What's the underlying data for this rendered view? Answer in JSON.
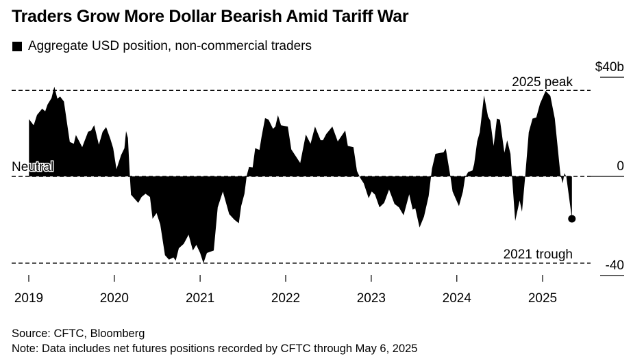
{
  "chart_data": {
    "type": "area",
    "title": "Traders Grow More Dollar Bearish Amid Tariff War",
    "legend": [
      {
        "name": "Aggregate USD position, non-commercial traders",
        "color": "#000000"
      }
    ],
    "legend_placement": "top-left",
    "y_unit_label": "$40b",
    "y_ticks": [
      {
        "value": 40,
        "label": "$40b"
      },
      {
        "value": 0,
        "label": "0"
      },
      {
        "value": -40,
        "label": "-40"
      }
    ],
    "ylim": [
      -40,
      40
    ],
    "y_axis_side": "right",
    "x_ticks": [
      "2019",
      "2020",
      "2021",
      "2022",
      "2023",
      "2024",
      "2025"
    ],
    "xlim": [
      "2019-01-01",
      "2025-05-06"
    ],
    "grid": false,
    "reference_lines": [
      {
        "label": "2025 peak",
        "value": 34.7,
        "style": "dashed"
      },
      {
        "label": "Neutral",
        "value": 0,
        "style": "dashed"
      },
      {
        "label": "2021 trough",
        "value": -35,
        "style": "dashed"
      }
    ],
    "end_marker": {
      "date": "2025-05-06",
      "value": -17.1
    },
    "series": [
      {
        "color": "#000000",
        "points": [
          [
            "2019-01-02",
            23.1
          ],
          [
            "2019-01-22",
            20.6
          ],
          [
            "2019-02-05",
            24.8
          ],
          [
            "2019-02-27",
            27.3
          ],
          [
            "2019-03-12",
            26.3
          ],
          [
            "2019-03-22",
            29.0
          ],
          [
            "2019-04-08",
            31.6
          ],
          [
            "2019-04-20",
            36.2
          ],
          [
            "2019-05-03",
            31.4
          ],
          [
            "2019-05-15",
            32.2
          ],
          [
            "2019-05-31",
            30.2
          ],
          [
            "2019-06-14",
            21.0
          ],
          [
            "2019-06-25",
            13.9
          ],
          [
            "2019-07-12",
            13.2
          ],
          [
            "2019-07-21",
            16.7
          ],
          [
            "2019-08-05",
            14.0
          ],
          [
            "2019-08-17",
            11.8
          ],
          [
            "2019-08-27",
            14.3
          ],
          [
            "2019-09-11",
            18.0
          ],
          [
            "2019-09-24",
            18.5
          ],
          [
            "2019-10-07",
            20.7
          ],
          [
            "2019-10-27",
            12.8
          ],
          [
            "2019-11-12",
            18.0
          ],
          [
            "2019-11-27",
            19.9
          ],
          [
            "2019-12-15",
            15.1
          ],
          [
            "2019-12-27",
            11.4
          ],
          [
            "2020-01-10",
            2.9
          ],
          [
            "2020-01-30",
            8.6
          ],
          [
            "2020-02-13",
            11.4
          ],
          [
            "2020-02-20",
            18.3
          ],
          [
            "2020-02-28",
            15.5
          ],
          [
            "2020-03-07",
            0.4
          ],
          [
            "2020-03-12",
            -7.4
          ],
          [
            "2020-04-12",
            -10.7
          ],
          [
            "2020-04-26",
            -8.3
          ],
          [
            "2020-05-13",
            -7.0
          ],
          [
            "2020-06-01",
            -8.3
          ],
          [
            "2020-06-12",
            -17.1
          ],
          [
            "2020-06-29",
            -14.8
          ],
          [
            "2020-07-15",
            -19.4
          ],
          [
            "2020-08-04",
            -31.8
          ],
          [
            "2020-08-21",
            -33.6
          ],
          [
            "2020-09-09",
            -32.7
          ],
          [
            "2020-09-19",
            -34.0
          ],
          [
            "2020-10-02",
            -29.0
          ],
          [
            "2020-10-23",
            -27.2
          ],
          [
            "2020-11-13",
            -23.5
          ],
          [
            "2020-12-01",
            -29.9
          ],
          [
            "2020-12-16",
            -27.6
          ],
          [
            "2021-01-01",
            -30.9
          ],
          [
            "2021-01-15",
            -35.0
          ],
          [
            "2021-01-30",
            -30.9
          ],
          [
            "2021-02-28",
            -29.9
          ],
          [
            "2021-03-17",
            -12.5
          ],
          [
            "2021-04-08",
            -6.1
          ],
          [
            "2021-05-05",
            -15.2
          ],
          [
            "2021-05-27",
            -17.5
          ],
          [
            "2021-06-15",
            -18.9
          ],
          [
            "2021-06-25",
            -12.0
          ],
          [
            "2021-07-09",
            -7.0
          ],
          [
            "2021-07-19",
            0.4
          ],
          [
            "2021-07-29",
            3.9
          ],
          [
            "2021-08-13",
            3.6
          ],
          [
            "2021-08-24",
            11.4
          ],
          [
            "2021-09-11",
            10.7
          ],
          [
            "2021-09-20",
            16.0
          ],
          [
            "2021-10-05",
            23.5
          ],
          [
            "2021-10-20",
            22.9
          ],
          [
            "2021-11-08",
            19.2
          ],
          [
            "2021-11-18",
            20.1
          ],
          [
            "2021-11-29",
            24.7
          ],
          [
            "2021-12-12",
            20.6
          ],
          [
            "2022-01-10",
            20.1
          ],
          [
            "2022-01-25",
            10.9
          ],
          [
            "2022-03-04",
            5.4
          ],
          [
            "2022-03-28",
            16.9
          ],
          [
            "2022-04-17",
            13.2
          ],
          [
            "2022-05-06",
            20.1
          ],
          [
            "2022-05-30",
            14.6
          ],
          [
            "2022-06-09",
            14.6
          ],
          [
            "2022-06-23",
            17.1
          ],
          [
            "2022-07-19",
            20.1
          ],
          [
            "2022-08-11",
            14.1
          ],
          [
            "2022-09-12",
            18.5
          ],
          [
            "2022-09-23",
            12.3
          ],
          [
            "2022-10-17",
            11.8
          ],
          [
            "2022-11-01",
            2.2
          ],
          [
            "2022-11-15",
            -0.6
          ],
          [
            "2022-11-30",
            -2.8
          ],
          [
            "2022-12-21",
            -8.8
          ],
          [
            "2023-01-03",
            -6.1
          ],
          [
            "2023-01-17",
            -7.4
          ],
          [
            "2023-02-05",
            -12.5
          ],
          [
            "2023-02-25",
            -10.7
          ],
          [
            "2023-03-18",
            -5.3
          ],
          [
            "2023-04-10",
            -11.1
          ],
          [
            "2023-04-29",
            -12.5
          ],
          [
            "2023-05-19",
            -15.7
          ],
          [
            "2023-06-12",
            -7.2
          ],
          [
            "2023-06-27",
            -13.4
          ],
          [
            "2023-07-08",
            -12.9
          ],
          [
            "2023-07-26",
            -20.6
          ],
          [
            "2023-08-14",
            -16.2
          ],
          [
            "2023-09-03",
            -7.9
          ],
          [
            "2023-09-17",
            3.1
          ],
          [
            "2023-10-02",
            9.1
          ],
          [
            "2023-11-05",
            9.7
          ],
          [
            "2023-11-15",
            11.2
          ],
          [
            "2023-12-05",
            -0.1
          ],
          [
            "2023-12-14",
            -6.1
          ],
          [
            "2024-01-10",
            -12.0
          ],
          [
            "2024-01-27",
            -6.1
          ],
          [
            "2024-02-05",
            -0.6
          ],
          [
            "2024-02-18",
            1.7
          ],
          [
            "2024-03-08",
            2.4
          ],
          [
            "2024-03-15",
            5.0
          ],
          [
            "2024-03-28",
            14.1
          ],
          [
            "2024-04-08",
            17.8
          ],
          [
            "2024-04-26",
            32.7
          ],
          [
            "2024-05-13",
            24.2
          ],
          [
            "2024-05-23",
            22.4
          ],
          [
            "2024-06-06",
            12.3
          ],
          [
            "2024-06-20",
            23.3
          ],
          [
            "2024-07-03",
            22.9
          ],
          [
            "2024-07-22",
            9.6
          ],
          [
            "2024-08-03",
            14.6
          ],
          [
            "2024-08-17",
            9.1
          ],
          [
            "2024-08-24",
            -0.6
          ],
          [
            "2024-09-06",
            -18.0
          ],
          [
            "2024-09-25",
            -9.7
          ],
          [
            "2024-10-05",
            -14.3
          ],
          [
            "2024-10-19",
            0.4
          ],
          [
            "2024-11-03",
            17.8
          ],
          [
            "2024-11-19",
            23.3
          ],
          [
            "2024-12-05",
            23.8
          ],
          [
            "2024-12-21",
            29.3
          ],
          [
            "2025-01-14",
            34.5
          ],
          [
            "2025-02-03",
            32.5
          ],
          [
            "2025-02-22",
            23.3
          ],
          [
            "2025-03-18",
            0.8
          ],
          [
            "2025-03-28",
            -2.8
          ],
          [
            "2025-04-04",
            1.3
          ],
          [
            "2025-04-12",
            -0.1
          ],
          [
            "2025-05-06",
            -17.1
          ]
        ]
      }
    ]
  },
  "footer": {
    "source": "Source: CFTC, Bloomberg",
    "note": "Note: Data includes net futures positions recorded by CFTC through May 6, 2025"
  }
}
